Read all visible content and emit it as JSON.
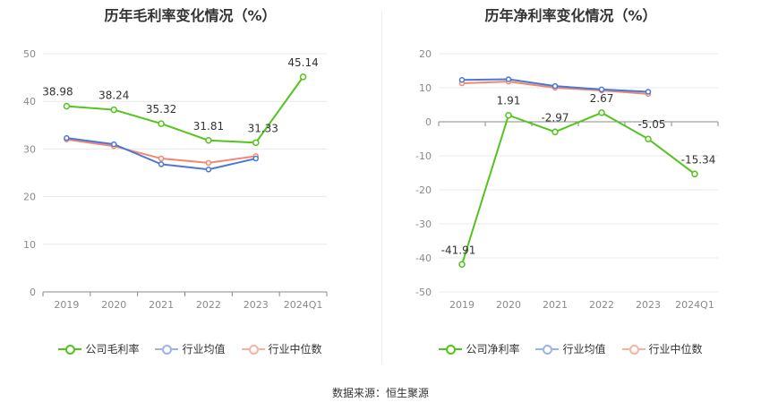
{
  "source": "数据来源：恒生聚源",
  "colors": {
    "company": "#52c41a",
    "avg": "#4a78d6",
    "median": "#f2876d"
  },
  "chart_data": [
    {
      "type": "line",
      "title": "历年毛利率变化情况（%）",
      "categories": [
        "2019",
        "2020",
        "2021",
        "2022",
        "2023",
        "2024Q1"
      ],
      "ylim": [
        0,
        50
      ],
      "yticks": [
        0,
        10,
        20,
        30,
        40,
        50
      ],
      "grid": true,
      "legend": "bottom",
      "series": [
        {
          "name": "公司毛利率",
          "key": "company",
          "values": [
            38.98,
            38.24,
            35.32,
            31.81,
            31.33,
            45.14
          ],
          "labels": [
            "38.98",
            "38.24",
            "35.32",
            "31.81",
            "31.33",
            "45.14"
          ]
        },
        {
          "name": "行业均值",
          "key": "avg",
          "values": [
            32.3,
            31.0,
            26.8,
            25.7,
            28.0,
            null
          ]
        },
        {
          "name": "行业中位数",
          "key": "median",
          "values": [
            32.0,
            30.6,
            28.0,
            27.1,
            28.5,
            null
          ]
        }
      ]
    },
    {
      "type": "line",
      "title": "历年净利率变化情况（%）",
      "categories": [
        "2019",
        "2020",
        "2021",
        "2022",
        "2023",
        "2024Q1"
      ],
      "ylim": [
        -50,
        20
      ],
      "yticks": [
        -50,
        -40,
        -30,
        -20,
        -10,
        0,
        10,
        20
      ],
      "grid": true,
      "legend": "bottom",
      "series": [
        {
          "name": "公司净利率",
          "key": "company",
          "values": [
            -41.91,
            1.91,
            -2.97,
            2.67,
            -5.05,
            -15.34
          ],
          "labels": [
            "-41.91",
            "1.91",
            "-2.97",
            "2.67",
            "-5.05",
            "-15.34"
          ]
        },
        {
          "name": "行业均值",
          "key": "avg",
          "values": [
            12.3,
            12.5,
            10.5,
            9.5,
            8.8,
            null
          ]
        },
        {
          "name": "行业中位数",
          "key": "median",
          "values": [
            11.3,
            11.8,
            10.0,
            9.2,
            8.2,
            null
          ]
        }
      ]
    }
  ]
}
